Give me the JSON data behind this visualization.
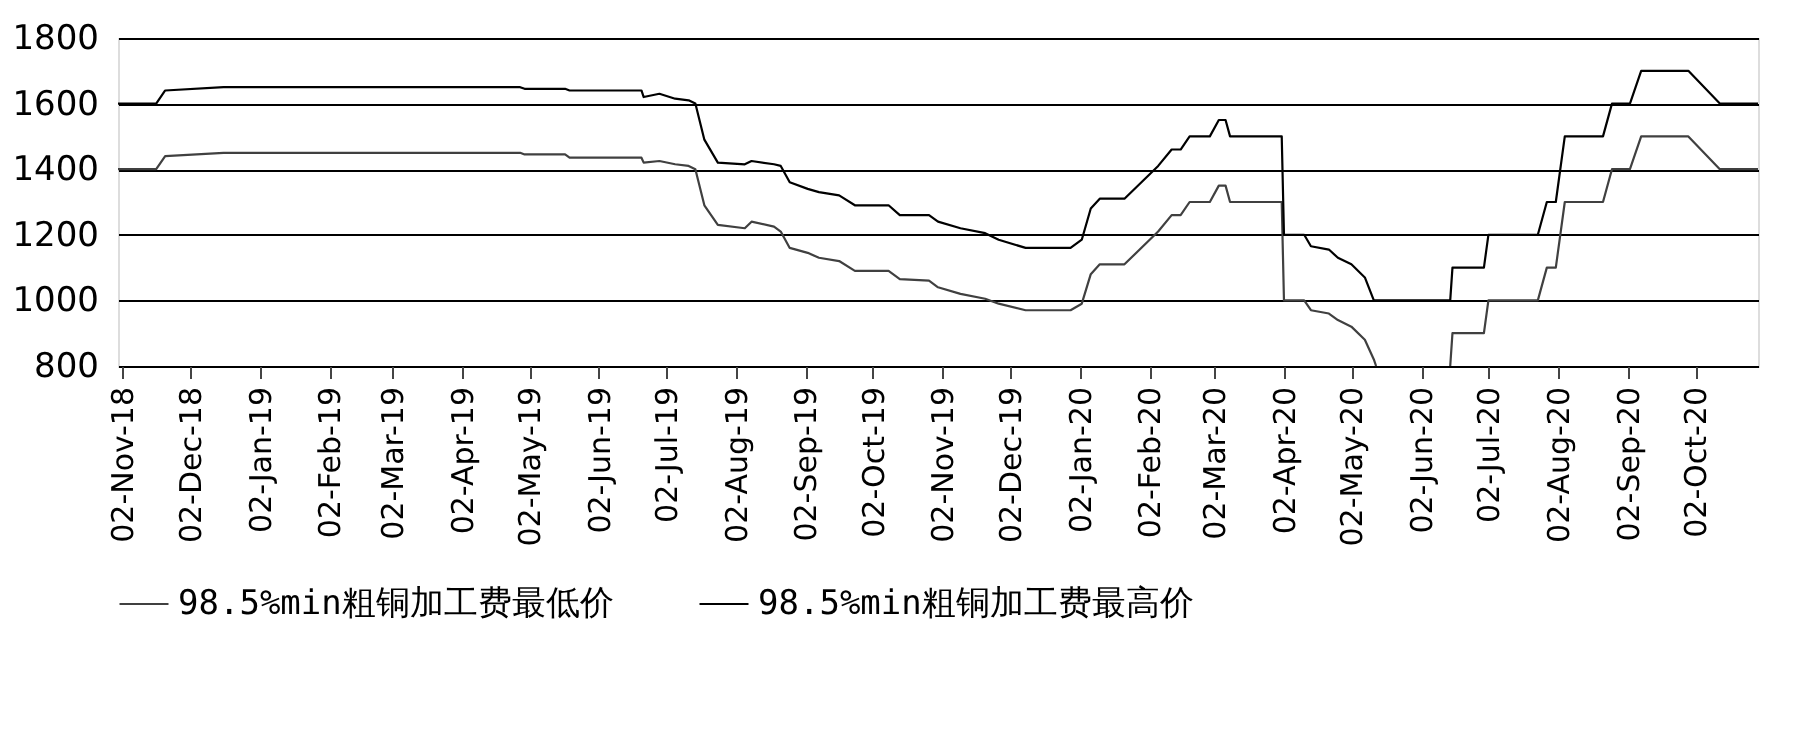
{
  "chart_data": {
    "type": "line",
    "xlim": [
      "2018-10-31",
      "2020-10-30"
    ],
    "ylim": [
      800,
      1800
    ],
    "yticks": [
      800,
      1000,
      1200,
      1400,
      1600,
      1800
    ],
    "xticks": [
      {
        "value": "2018-11-02",
        "label": "02-Nov-18"
      },
      {
        "value": "2018-12-02",
        "label": "02-Dec-18"
      },
      {
        "value": "2019-01-02",
        "label": "02-Jan-19"
      },
      {
        "value": "2019-02-02",
        "label": "02-Feb-19"
      },
      {
        "value": "2019-03-02",
        "label": "02-Mar-19"
      },
      {
        "value": "2019-04-02",
        "label": "02-Apr-19"
      },
      {
        "value": "2019-05-02",
        "label": "02-May-19"
      },
      {
        "value": "2019-06-02",
        "label": "02-Jun-19"
      },
      {
        "value": "2019-07-02",
        "label": "02-Jul-19"
      },
      {
        "value": "2019-08-02",
        "label": "02-Aug-19"
      },
      {
        "value": "2019-09-02",
        "label": "02-Sep-19"
      },
      {
        "value": "2019-10-02",
        "label": "02-Oct-19"
      },
      {
        "value": "2019-11-02",
        "label": "02-Nov-19"
      },
      {
        "value": "2019-12-02",
        "label": "02-Dec-19"
      },
      {
        "value": "2020-01-02",
        "label": "02-Jan-20"
      },
      {
        "value": "2020-02-02",
        "label": "02-Feb-20"
      },
      {
        "value": "2020-03-02",
        "label": "02-Mar-20"
      },
      {
        "value": "2020-04-02",
        "label": "02-Apr-20"
      },
      {
        "value": "2020-05-02",
        "label": "02-May-20"
      },
      {
        "value": "2020-06-02",
        "label": "02-Jun-20"
      },
      {
        "value": "2020-07-02",
        "label": "02-Jul-20"
      },
      {
        "value": "2020-08-02",
        "label": "02-Aug-20"
      },
      {
        "value": "2020-09-02",
        "label": "02-Sep-20"
      },
      {
        "value": "2020-10-02",
        "label": "02-Oct-20"
      }
    ],
    "grid": "y",
    "legend": "bottom",
    "marker": "none",
    "line_style": "solid",
    "series": [
      {
        "name": "98.5%min粗铜加工费最低价",
        "color": "#404040",
        "x": [
          "2018-10-31",
          "2018-11-17",
          "2018-11-21",
          "2018-12-17",
          "2019-04-28",
          "2019-04-30",
          "2019-05-18",
          "2019-05-20",
          "2019-06-21",
          "2019-06-22",
          "2019-06-29",
          "2019-07-06",
          "2019-07-12",
          "2019-07-15",
          "2019-07-19",
          "2019-07-25",
          "2019-08-06",
          "2019-08-09",
          "2019-08-19",
          "2019-08-22",
          "2019-08-26",
          "2019-09-03",
          "2019-09-08",
          "2019-09-17",
          "2019-09-24",
          "2019-10-09",
          "2019-10-14",
          "2019-10-27",
          "2019-10-31",
          "2019-11-10",
          "2019-11-21",
          "2019-11-27",
          "2019-12-09",
          "2019-12-29",
          "2020-01-03",
          "2020-01-07",
          "2020-01-11",
          "2020-01-22",
          "2020-02-06",
          "2020-02-12",
          "2020-02-16",
          "2020-02-20",
          "2020-02-29",
          "2020-03-04",
          "2020-03-07",
          "2020-03-09",
          "2020-04-01",
          "2020-04-02",
          "2020-04-11",
          "2020-04-14",
          "2020-04-22",
          "2020-04-26",
          "2020-05-02",
          "2020-05-08",
          "2020-05-12",
          "2020-05-13",
          "2020-05-20",
          "2020-06-15",
          "2020-06-16",
          "2020-06-30",
          "2020-07-02",
          "2020-07-24",
          "2020-07-28",
          "2020-08-01",
          "2020-08-05",
          "2020-08-22",
          "2020-08-26",
          "2020-09-03",
          "2020-09-08",
          "2020-09-29",
          "2020-10-13",
          "2020-10-30"
        ],
        "values": [
          1400,
          1400,
          1440,
          1450,
          1450,
          1445,
          1445,
          1435,
          1435,
          1420,
          1425,
          1415,
          1410,
          1400,
          1290,
          1230,
          1220,
          1240,
          1225,
          1210,
          1160,
          1145,
          1130,
          1120,
          1090,
          1090,
          1065,
          1060,
          1040,
          1020,
          1005,
          990,
          970,
          970,
          990,
          1080,
          1110,
          1110,
          1210,
          1260,
          1260,
          1300,
          1300,
          1350,
          1350,
          1300,
          1300,
          1000,
          1000,
          970,
          960,
          940,
          920,
          880,
          820,
          800,
          null,
          800,
          900,
          900,
          1000,
          1000,
          1100,
          1100,
          1300,
          1300,
          1400,
          1400,
          1500,
          1500,
          1400,
          1400
        ]
      },
      {
        "name": "98.5%min粗铜加工费最高价",
        "color": "#000000",
        "x": [
          "2018-10-31",
          "2018-11-17",
          "2018-11-21",
          "2018-12-17",
          "2019-04-28",
          "2019-04-30",
          "2019-05-18",
          "2019-05-20",
          "2019-06-21",
          "2019-06-22",
          "2019-06-29",
          "2019-07-06",
          "2019-07-12",
          "2019-07-15",
          "2019-07-19",
          "2019-07-25",
          "2019-08-06",
          "2019-08-09",
          "2019-08-19",
          "2019-08-22",
          "2019-08-26",
          "2019-09-03",
          "2019-09-08",
          "2019-09-17",
          "2019-09-24",
          "2019-10-09",
          "2019-10-14",
          "2019-10-27",
          "2019-10-31",
          "2019-11-10",
          "2019-11-21",
          "2019-11-27",
          "2019-12-09",
          "2019-12-29",
          "2020-01-03",
          "2020-01-07",
          "2020-01-11",
          "2020-01-22",
          "2020-02-06",
          "2020-02-12",
          "2020-02-16",
          "2020-02-20",
          "2020-02-29",
          "2020-03-04",
          "2020-03-07",
          "2020-03-09",
          "2020-04-01",
          "2020-04-02",
          "2020-04-11",
          "2020-04-14",
          "2020-04-22",
          "2020-04-26",
          "2020-05-02",
          "2020-05-08",
          "2020-05-12",
          "2020-06-15",
          "2020-06-16",
          "2020-06-30",
          "2020-07-02",
          "2020-07-24",
          "2020-07-28",
          "2020-08-01",
          "2020-08-05",
          "2020-08-22",
          "2020-08-26",
          "2020-09-03",
          "2020-09-08",
          "2020-09-29",
          "2020-10-13",
          "2020-10-30"
        ],
        "values": [
          1600,
          1600,
          1640,
          1650,
          1650,
          1645,
          1645,
          1640,
          1640,
          1620,
          1630,
          1615,
          1610,
          1600,
          1490,
          1420,
          1415,
          1425,
          1415,
          1410,
          1360,
          1340,
          1330,
          1320,
          1290,
          1290,
          1260,
          1260,
          1240,
          1220,
          1205,
          1185,
          1160,
          1160,
          1185,
          1280,
          1310,
          1310,
          1410,
          1460,
          1460,
          1500,
          1500,
          1550,
          1550,
          1500,
          1500,
          1200,
          1200,
          1165,
          1155,
          1130,
          1110,
          1070,
          1000,
          1000,
          1100,
          1100,
          1200,
          1200,
          1300,
          1300,
          1500,
          1500,
          1600,
          1600,
          1700,
          1700,
          1600,
          1600
        ]
      }
    ]
  }
}
